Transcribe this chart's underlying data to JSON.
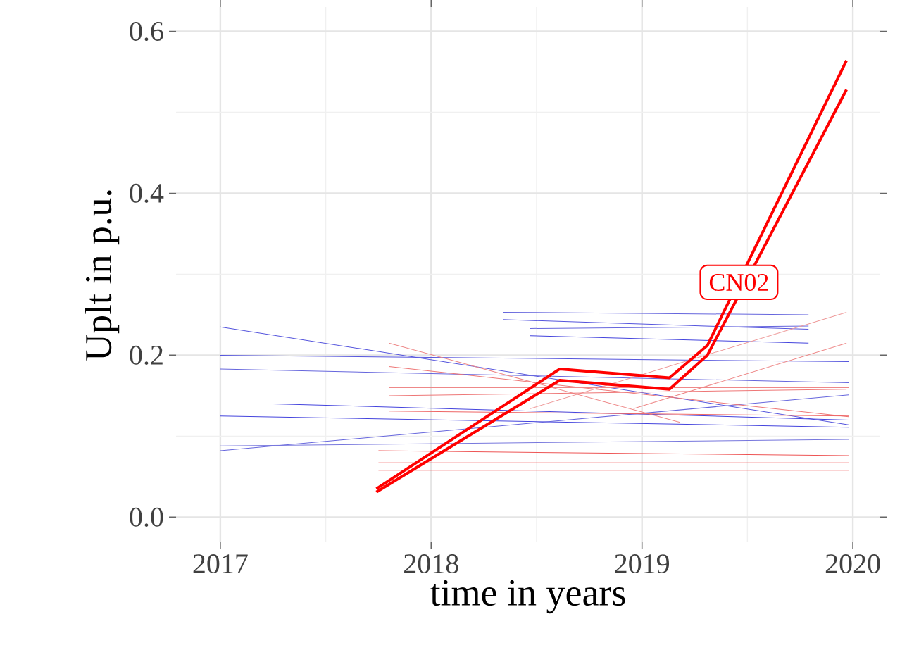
{
  "chart_data": {
    "type": "line",
    "xlabel": "time in years",
    "ylabel": "Uplt in p.u.",
    "xlim": [
      2016.79,
      2020.13
    ],
    "ylim": [
      -0.031,
      0.63
    ],
    "xticks": [
      2017,
      2018,
      2019,
      2020
    ],
    "yticks": [
      {
        "value": 0,
        "label": "0.0"
      },
      0.2,
      0.4,
      0.6
    ],
    "grid": true,
    "marker": "none",
    "line_style": "solid",
    "annotations": [
      {
        "text": "CN02",
        "x": 2019.46,
        "y": 0.29
      }
    ],
    "series": [
      {
        "color": "#5555dd",
        "x": [
          2017.0,
          2019.98
        ],
        "values": [
          0.235,
          0.114
        ]
      },
      {
        "color": "#5555dd",
        "x": [
          2017.0,
          2019.98
        ],
        "values": [
          0.2,
          0.192
        ]
      },
      {
        "color": "#6666dd",
        "x": [
          2017.0,
          2019.98
        ],
        "values": [
          0.183,
          0.166
        ]
      },
      {
        "color": "#4444dd",
        "x": [
          2017.0,
          2019.98
        ],
        "values": [
          0.125,
          0.111
        ]
      },
      {
        "color": "#6666dd",
        "x": [
          2017.0,
          2019.98
        ],
        "values": [
          0.082,
          0.151
        ]
      },
      {
        "color": "#4444dd",
        "x": [
          2017.25,
          2019.98
        ],
        "values": [
          0.14,
          0.12
        ]
      },
      {
        "color": "#7777dd",
        "x": [
          2017.0,
          2019.98
        ],
        "values": [
          0.088,
          0.096
        ]
      },
      {
        "color": "#6666dd",
        "x": [
          2018.34,
          2019.79
        ],
        "values": [
          0.253,
          0.25
        ]
      },
      {
        "color": "#5555dd",
        "x": [
          2018.34,
          2019.79
        ],
        "values": [
          0.244,
          0.232
        ]
      },
      {
        "color": "#4444dd",
        "x": [
          2018.47,
          2019.79
        ],
        "values": [
          0.224,
          0.215
        ]
      },
      {
        "color": "#6666dd",
        "x": [
          2018.47,
          2019.79
        ],
        "values": [
          0.233,
          0.236
        ]
      },
      {
        "color": "#ee8888",
        "x": [
          2017.8,
          2019.18
        ],
        "values": [
          0.215,
          0.117
        ]
      },
      {
        "color": "#ee7777",
        "x": [
          2017.8,
          2019.98
        ],
        "values": [
          0.186,
          0.124
        ]
      },
      {
        "color": "#ee8888",
        "x": [
          2017.8,
          2019.98
        ],
        "values": [
          0.16,
          0.16
        ]
      },
      {
        "color": "#ee6666",
        "x": [
          2017.8,
          2019.98
        ],
        "values": [
          0.131,
          0.125
        ]
      },
      {
        "color": "#ee5555",
        "x": [
          2017.75,
          2019.98
        ],
        "values": [
          0.082,
          0.076
        ]
      },
      {
        "color": "#ee4444",
        "x": [
          2017.75,
          2019.98
        ],
        "values": [
          0.067,
          0.067
        ]
      },
      {
        "color": "#ee5555",
        "x": [
          2017.75,
          2019.98
        ],
        "values": [
          0.058,
          0.058
        ]
      },
      {
        "color": "#ee9999",
        "x": [
          2018.47,
          2019.97
        ],
        "values": [
          0.134,
          0.253
        ]
      },
      {
        "color": "#ee8888",
        "x": [
          2018.96,
          2019.97
        ],
        "values": [
          0.134,
          0.215
        ]
      },
      {
        "color": "#ee7777",
        "x": [
          2017.8,
          2019.97
        ],
        "values": [
          0.15,
          0.158
        ]
      },
      {
        "color": "#ff0000",
        "x": [
          2017.74,
          2018.61,
          2019.13,
          2019.31,
          2019.97
        ],
        "values": [
          0.035,
          0.183,
          0.172,
          0.212,
          0.564
        ]
      },
      {
        "color": "#ff0000",
        "x": [
          2017.74,
          2018.61,
          2019.13,
          2019.31,
          2019.97
        ],
        "values": [
          0.031,
          0.169,
          0.158,
          0.2,
          0.528
        ]
      }
    ]
  }
}
